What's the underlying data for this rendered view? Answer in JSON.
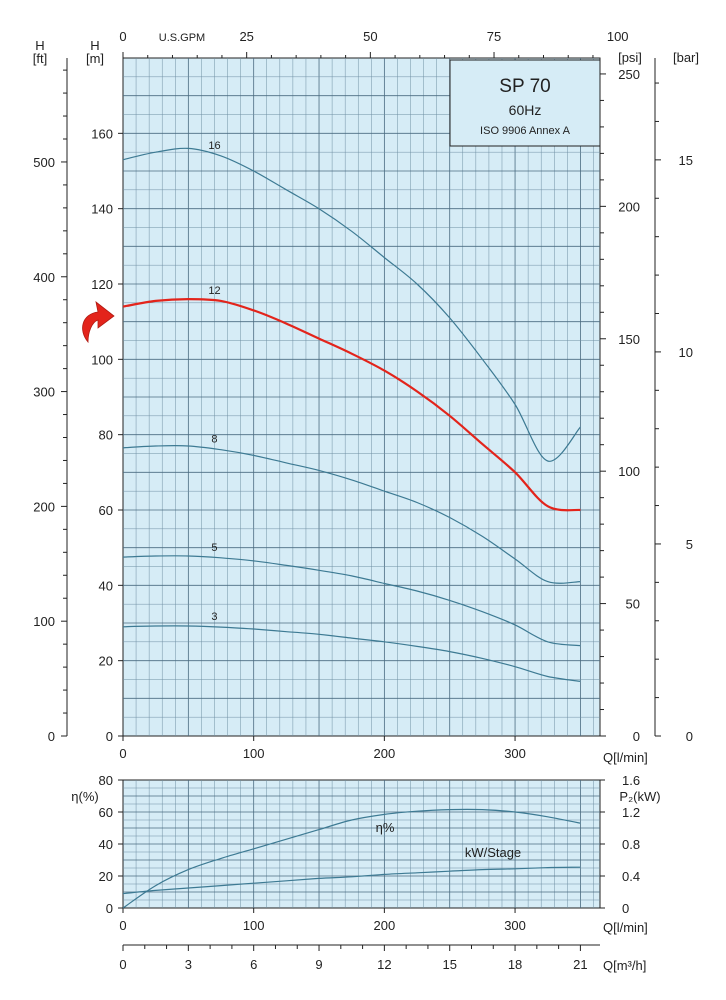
{
  "chart_data": [
    {
      "type": "line",
      "title_box": {
        "line1": "SP 70",
        "line2": "60Hz",
        "line3": "ISO 9906 Annex A"
      },
      "x_bottom": {
        "label": "Q[l/min]",
        "range": [
          0,
          365
        ],
        "ticks": [
          0,
          100,
          200,
          300
        ]
      },
      "x_top": {
        "label": "U.S.GPM",
        "ticks": [
          0,
          25,
          50,
          75,
          100
        ]
      },
      "y_left_m": {
        "label": "H",
        "unit": "[m]",
        "range": [
          0,
          180
        ],
        "ticks": [
          0,
          20,
          40,
          60,
          80,
          100,
          120,
          140,
          160
        ]
      },
      "y_left_ft": {
        "label": "H",
        "unit": "[ft]",
        "ticks": [
          0,
          100,
          200,
          300,
          400,
          500
        ]
      },
      "y_right_psi": {
        "unit": "[psi]",
        "ticks": [
          0,
          50,
          100,
          150,
          200,
          250
        ]
      },
      "y_right_bar": {
        "unit": "[bar]",
        "ticks": [
          0,
          5,
          10,
          15
        ]
      },
      "highlight_color": "#e3241b",
      "curve_color": "#3d7a93",
      "grid_fill": "#d6ecf6",
      "x": [
        0,
        25,
        50,
        75,
        100,
        125,
        150,
        175,
        200,
        225,
        250,
        275,
        300,
        325,
        350
      ],
      "series": [
        {
          "name": "16",
          "highlight": false,
          "values": [
            153,
            155,
            156,
            154,
            150,
            145,
            140,
            134,
            127,
            120,
            111,
            100,
            88,
            73,
            82
          ]
        },
        {
          "name": "12",
          "highlight": true,
          "values": [
            114,
            115.5,
            116,
            115.5,
            113,
            109.5,
            105.5,
            101.5,
            97,
            91.5,
            85,
            77.5,
            70,
            61,
            60
          ]
        },
        {
          "name": "8",
          "highlight": false,
          "values": [
            76.5,
            77,
            77,
            76,
            74.5,
            72.5,
            70.5,
            68,
            65,
            62,
            58,
            53,
            47,
            41,
            41
          ]
        },
        {
          "name": "5",
          "highlight": false,
          "values": [
            47.5,
            47.8,
            47.8,
            47.3,
            46.5,
            45.3,
            44,
            42.5,
            40.5,
            38.5,
            36,
            33,
            29.5,
            25,
            24
          ]
        },
        {
          "name": "3",
          "highlight": false,
          "values": [
            29,
            29.2,
            29.2,
            28.9,
            28.4,
            27.7,
            27,
            26,
            25,
            23.8,
            22.4,
            20.6,
            18.4,
            15.8,
            14.5
          ]
        }
      ]
    },
    {
      "type": "line",
      "x_bottom": {
        "label": "Q[l/min]",
        "range": [
          0,
          365
        ],
        "ticks": [
          0,
          100,
          200,
          300
        ]
      },
      "x_m3h": {
        "label": "Q[m³/h]",
        "ticks": [
          0,
          3,
          6,
          9,
          12,
          15,
          18,
          21
        ]
      },
      "y_left": {
        "label": "η(%)",
        "range": [
          0,
          80
        ],
        "ticks": [
          0,
          20,
          40,
          60,
          80
        ]
      },
      "y_right": {
        "label": "P₂(kW)",
        "ticks": [
          "0",
          "0.4",
          "0.8",
          "1.2",
          "1.6"
        ]
      },
      "x": [
        0,
        25,
        50,
        75,
        100,
        125,
        150,
        175,
        200,
        225,
        250,
        275,
        300,
        325,
        350
      ],
      "series": [
        {
          "name": "η%",
          "values": [
            0,
            14,
            24,
            31,
            37,
            43,
            49,
            55,
            58.5,
            60.5,
            61.5,
            61.5,
            60,
            57,
            53
          ]
        },
        {
          "name": "kW/Stage",
          "p2_values": [
            0.18,
            0.22,
            0.25,
            0.28,
            0.31,
            0.34,
            0.37,
            0.39,
            0.42,
            0.44,
            0.46,
            0.48,
            0.49,
            0.505,
            0.51
          ]
        }
      ]
    }
  ]
}
